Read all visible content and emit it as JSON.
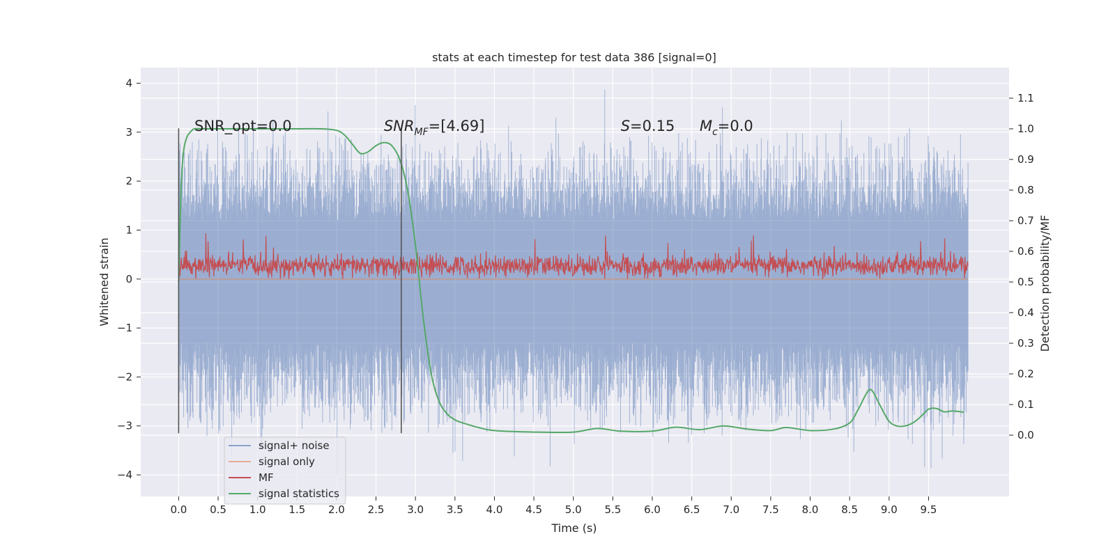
{
  "chart_data": {
    "type": "line",
    "title": "stats at each timestep for test data 386 [signal=0]",
    "xlabel": "Time (s)",
    "ylabel_left": "Whitened strain",
    "ylabel_right": "Detection probability/MF",
    "xlim": [
      -0.48,
      10.52
    ],
    "ylim_left": [
      -4.44,
      4.32
    ],
    "ylim_right": [
      -0.2,
      1.2
    ],
    "x_ticks": [
      0.0,
      0.5,
      1.0,
      1.5,
      2.0,
      2.5,
      3.0,
      3.5,
      4.0,
      4.5,
      5.0,
      5.5,
      6.0,
      6.5,
      7.0,
      7.5,
      8.0,
      8.5,
      9.0,
      9.5
    ],
    "x_tick_labels": [
      "0.0",
      "0.5",
      "1.0",
      "1.5",
      "2.0",
      "2.5",
      "3.0",
      "3.5",
      "4.0",
      "4.5",
      "5.0",
      "5.5",
      "6.0",
      "6.5",
      "7.0",
      "7.5",
      "8.0",
      "8.5",
      "9.0",
      "9.5"
    ],
    "y_left_ticks": [
      -4,
      -3,
      -2,
      -1,
      0,
      1,
      2,
      3,
      4
    ],
    "y_left_tick_labels": [
      "−4",
      "−3",
      "−2",
      "−1",
      "0",
      "1",
      "2",
      "3",
      "4"
    ],
    "y_right_ticks": [
      0.0,
      0.1,
      0.2,
      0.3,
      0.4,
      0.5,
      0.6,
      0.7,
      0.8,
      0.9,
      1.0,
      1.1
    ],
    "y_right_tick_labels": [
      "0.0",
      "0.1",
      "0.2",
      "0.3",
      "0.4",
      "0.5",
      "0.6",
      "0.7",
      "0.8",
      "0.9",
      "1.0",
      "1.1"
    ],
    "grid": true,
    "legend_position": "lower-left",
    "series": [
      {
        "name": "signal+ noise",
        "color": "#4c72b0",
        "axis": "left",
        "kind": "noise",
        "x_range": [
          0.0,
          10.0
        ],
        "envelope_top": 3.1,
        "envelope_bottom": -3.2,
        "extremes": [
          3.95,
          -4.0
        ]
      },
      {
        "name": "signal only",
        "color": "#dd8452",
        "axis": "left",
        "kind": "flat",
        "x_range": [
          0.0,
          10.0
        ],
        "value": 0.0
      },
      {
        "name": "MF",
        "color": "#c44e52",
        "axis": "left",
        "kind": "noise",
        "x_range": [
          0.0,
          10.0
        ],
        "envelope_top": 1.0,
        "envelope_bottom": 0.0
      },
      {
        "name": "signal statistics",
        "color": "#55a868",
        "axis": "right",
        "x": [
          0.0,
          0.03,
          0.06,
          0.1,
          0.15,
          0.2,
          0.3,
          0.5,
          1.0,
          1.5,
          1.8,
          2.0,
          2.1,
          2.2,
          2.3,
          2.4,
          2.5,
          2.6,
          2.7,
          2.8,
          2.9,
          3.0,
          3.1,
          3.2,
          3.3,
          3.4,
          3.5,
          3.6,
          3.8,
          4.0,
          4.5,
          5.0,
          5.3,
          5.6,
          6.0,
          6.3,
          6.6,
          6.9,
          7.2,
          7.5,
          7.7,
          8.0,
          8.3,
          8.5,
          8.6,
          8.7,
          8.75,
          8.8,
          8.9,
          9.0,
          9.1,
          9.2,
          9.3,
          9.4,
          9.5,
          9.6,
          9.7,
          9.8,
          9.95
        ],
        "y": [
          0.5,
          0.8,
          0.92,
          0.97,
          0.99,
          1.0,
          1.0,
          1.0,
          1.0,
          1.0,
          1.0,
          0.995,
          0.98,
          0.95,
          0.92,
          0.925,
          0.945,
          0.955,
          0.945,
          0.9,
          0.8,
          0.62,
          0.38,
          0.2,
          0.11,
          0.07,
          0.05,
          0.04,
          0.025,
          0.015,
          0.01,
          0.01,
          0.022,
          0.013,
          0.013,
          0.026,
          0.018,
          0.03,
          0.02,
          0.015,
          0.025,
          0.015,
          0.02,
          0.04,
          0.08,
          0.13,
          0.148,
          0.14,
          0.09,
          0.045,
          0.03,
          0.03,
          0.04,
          0.06,
          0.085,
          0.087,
          0.076,
          0.079,
          0.075
        ]
      }
    ],
    "vertical_markers": [
      {
        "x": 0.0,
        "y_range": [
          -3.15,
          3.08
        ],
        "axis": "left",
        "color": "#555555"
      },
      {
        "x": 2.82,
        "y_range": [
          -3.15,
          3.08
        ],
        "axis": "left",
        "color": "#555555"
      }
    ],
    "annotations": [
      {
        "text": "SNR_opt=0.0",
        "x": 0.2,
        "y": 3.1
      },
      {
        "text": "SNR",
        "sub": "MF",
        "suffix": "=[4.69]",
        "italic": true,
        "x": 2.6,
        "y": 3.1
      },
      {
        "text": "S",
        "suffix": "=0.15",
        "italic": true,
        "x": 5.6,
        "y": 3.1
      },
      {
        "text": "M",
        "sub": "c",
        "suffix": "=0.0",
        "italic": true,
        "x": 6.6,
        "y": 3.1
      }
    ]
  },
  "colors": {
    "plot_background": "#eaeaf2",
    "grid": "#ffffff",
    "text": "#262626"
  }
}
